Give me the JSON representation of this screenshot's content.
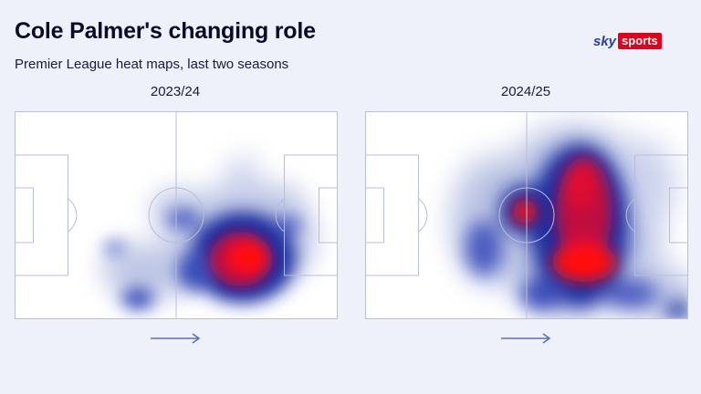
{
  "header": {
    "title": "Cole Palmer's changing role",
    "subtitle": "Premier League heat maps, last two seasons"
  },
  "logo": {
    "sky": "sky",
    "sports": "sports"
  },
  "maps": [
    {
      "season": "2023/24"
    },
    {
      "season": "2024/25"
    }
  ],
  "colors": {
    "background": "#eef0fa",
    "pitch": "#ffffff",
    "lines": "#b8bed8",
    "heat_low": "#8b9ad0",
    "heat_mid": "#1e2fa0",
    "heat_high": "#ff1010",
    "arrow": "#5a6fb0"
  }
}
